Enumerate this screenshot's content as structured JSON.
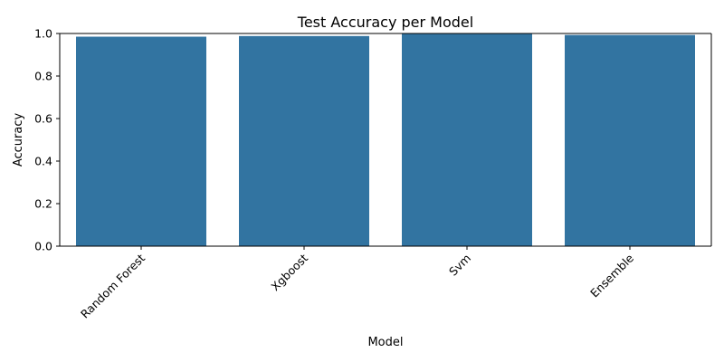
{
  "chart_data": {
    "type": "bar",
    "title": "Test Accuracy per Model",
    "xlabel": "Model",
    "ylabel": "Accuracy",
    "categories": [
      "Random Forest",
      "Xgboost",
      "Svm",
      "Ensemble"
    ],
    "values": [
      0.985,
      0.988,
      1.0,
      0.993
    ],
    "ylim": [
      0,
      1.0
    ],
    "yticks": [
      0.0,
      0.2,
      0.4,
      0.6,
      0.8,
      1.0
    ],
    "ytick_labels": [
      "0.0",
      "0.2",
      "0.4",
      "0.6",
      "0.8",
      "1.0"
    ],
    "grid": false,
    "bar_color": "#3274a1",
    "xtick_rotation": "45 degrees"
  }
}
